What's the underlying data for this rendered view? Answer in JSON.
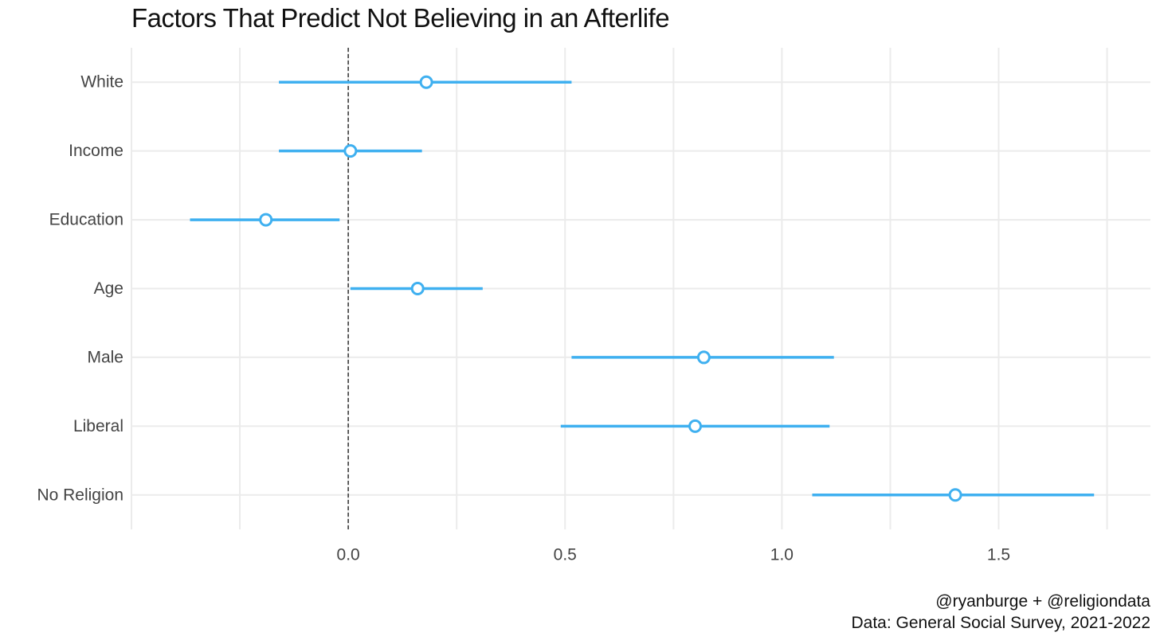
{
  "chart_data": {
    "type": "dot-whisker",
    "title": "Factors That Predict Not Believing in an Afterlife",
    "xlabel": "",
    "ylabel": "",
    "xlim": [
      -0.5,
      1.85
    ],
    "xticks": [
      0.0,
      0.5,
      1.0,
      1.5
    ],
    "xtick_labels": [
      "0.0",
      "0.5",
      "1.0",
      "1.5"
    ],
    "reference_line": 0,
    "grid": true,
    "color": "#3fb0f0",
    "categories": [
      "White",
      "Income",
      "Education",
      "Age",
      "Male",
      "Liberal",
      "No Religion"
    ],
    "estimates": [
      0.18,
      0.005,
      -0.19,
      0.16,
      0.82,
      0.8,
      1.4
    ],
    "lower": [
      -0.16,
      -0.16,
      -0.365,
      0.005,
      0.515,
      0.49,
      1.07
    ],
    "upper": [
      0.515,
      0.17,
      -0.02,
      0.31,
      1.12,
      1.11,
      1.72
    ]
  },
  "caption": {
    "line1": "@ryanburge + @religiondata",
    "line2": "Data: General Social Survey, 2021-2022"
  }
}
